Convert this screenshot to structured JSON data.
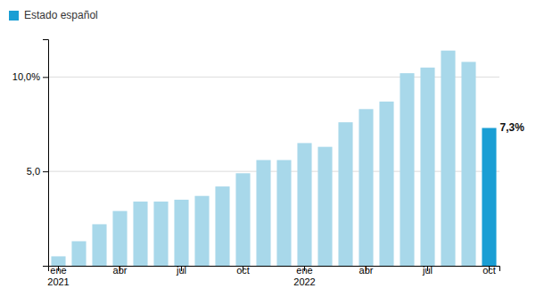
{
  "chart_data": {
    "type": "bar",
    "categories": [
      "ene\n2021",
      null,
      null,
      "abr",
      null,
      null,
      "jul",
      null,
      null,
      "oct",
      null,
      null,
      "ene\n2022",
      null,
      null,
      "abr",
      null,
      null,
      "jul",
      null,
      null,
      "oct"
    ],
    "series": [
      {
        "name": "Estado español",
        "color": "#1a9ed4",
        "values": [
          0.5,
          1.3,
          2.2,
          2.9,
          3.4,
          3.4,
          3.5,
          3.7,
          4.2,
          4.9,
          5.6,
          5.6,
          6.5,
          6.3,
          7.6,
          8.3,
          8.7,
          10.2,
          10.5,
          11.4,
          10.8,
          7.3
        ],
        "colors": [
          "#a8d8ea",
          "#a8d8ea",
          "#a8d8ea",
          "#a8d8ea",
          "#a8d8ea",
          "#a8d8ea",
          "#a8d8ea",
          "#a8d8ea",
          "#a8d8ea",
          "#a8d8ea",
          "#a8d8ea",
          "#a8d8ea",
          "#a8d8ea",
          "#a8d8ea",
          "#a8d8ea",
          "#a8d8ea",
          "#a8d8ea",
          "#a8d8ea",
          "#a8d8ea",
          "#a8d8ea",
          "#a8d8ea",
          "#1a9ed4"
        ]
      }
    ],
    "ylim": [
      0,
      12.0
    ],
    "yticks": [
      {
        "value": 5.0,
        "label": "5,0"
      },
      {
        "value": 10.0,
        "label": "10,0%"
      }
    ],
    "grid": true,
    "legend": "upper left",
    "annotations": [
      {
        "text": "7,3%",
        "index": 21,
        "value": 7.3
      }
    ]
  }
}
